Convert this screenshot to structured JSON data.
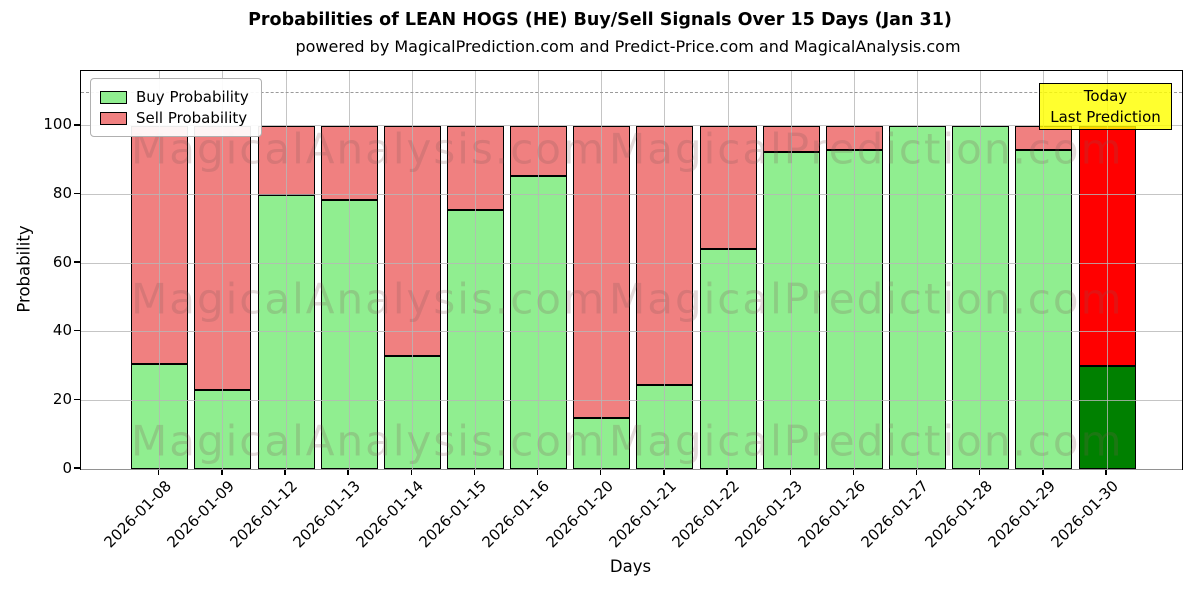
{
  "chart_data": {
    "type": "bar",
    "stacked": true,
    "title": "Probabilities of LEAN HOGS (HE) Buy/Sell Signals Over 15 Days (Jan 31)",
    "subtitle": "powered by MagicalPrediction.com and Predict-Price.com and MagicalAnalysis.com",
    "xlabel": "Days",
    "ylabel": "Probability",
    "categories": [
      "2026-01-08",
      "2026-01-09",
      "2026-01-12",
      "2026-01-13",
      "2026-01-14",
      "2026-01-15",
      "2026-01-16",
      "2026-01-20",
      "2026-01-21",
      "2026-01-22",
      "2026-01-23",
      "2026-01-26",
      "2026-01-27",
      "2026-01-28",
      "2026-01-29",
      "2026-01-30"
    ],
    "series": [
      {
        "name": "Buy Probability",
        "color": "#90EE90",
        "values": [
          30.5,
          23,
          80,
          78.5,
          33,
          75.5,
          85.5,
          15,
          24.5,
          64,
          92.5,
          93,
          100,
          100,
          93,
          30
        ]
      },
      {
        "name": "Sell Probability",
        "color": "#F08080",
        "values": [
          69.5,
          77,
          20,
          21.5,
          67,
          24.5,
          14.5,
          85,
          75.5,
          36,
          7.5,
          7,
          0,
          0,
          7,
          70
        ]
      }
    ],
    "last_bar_colors": {
      "buy": "#008000",
      "sell": "#FF0000"
    },
    "bar_edge_color": "#000000",
    "yticks": [
      0,
      20,
      40,
      60,
      80,
      100
    ],
    "ylim": [
      0,
      116
    ],
    "dashed_line_y": 110,
    "grid": true,
    "legend_position": "upper left",
    "annotation": {
      "line1": "Today",
      "line2": "Last Prediction",
      "bg_color": "#FFFF00"
    },
    "watermarks": {
      "left": "MagicalAnalysis.com",
      "right": "MagicalPrediction.com"
    }
  }
}
